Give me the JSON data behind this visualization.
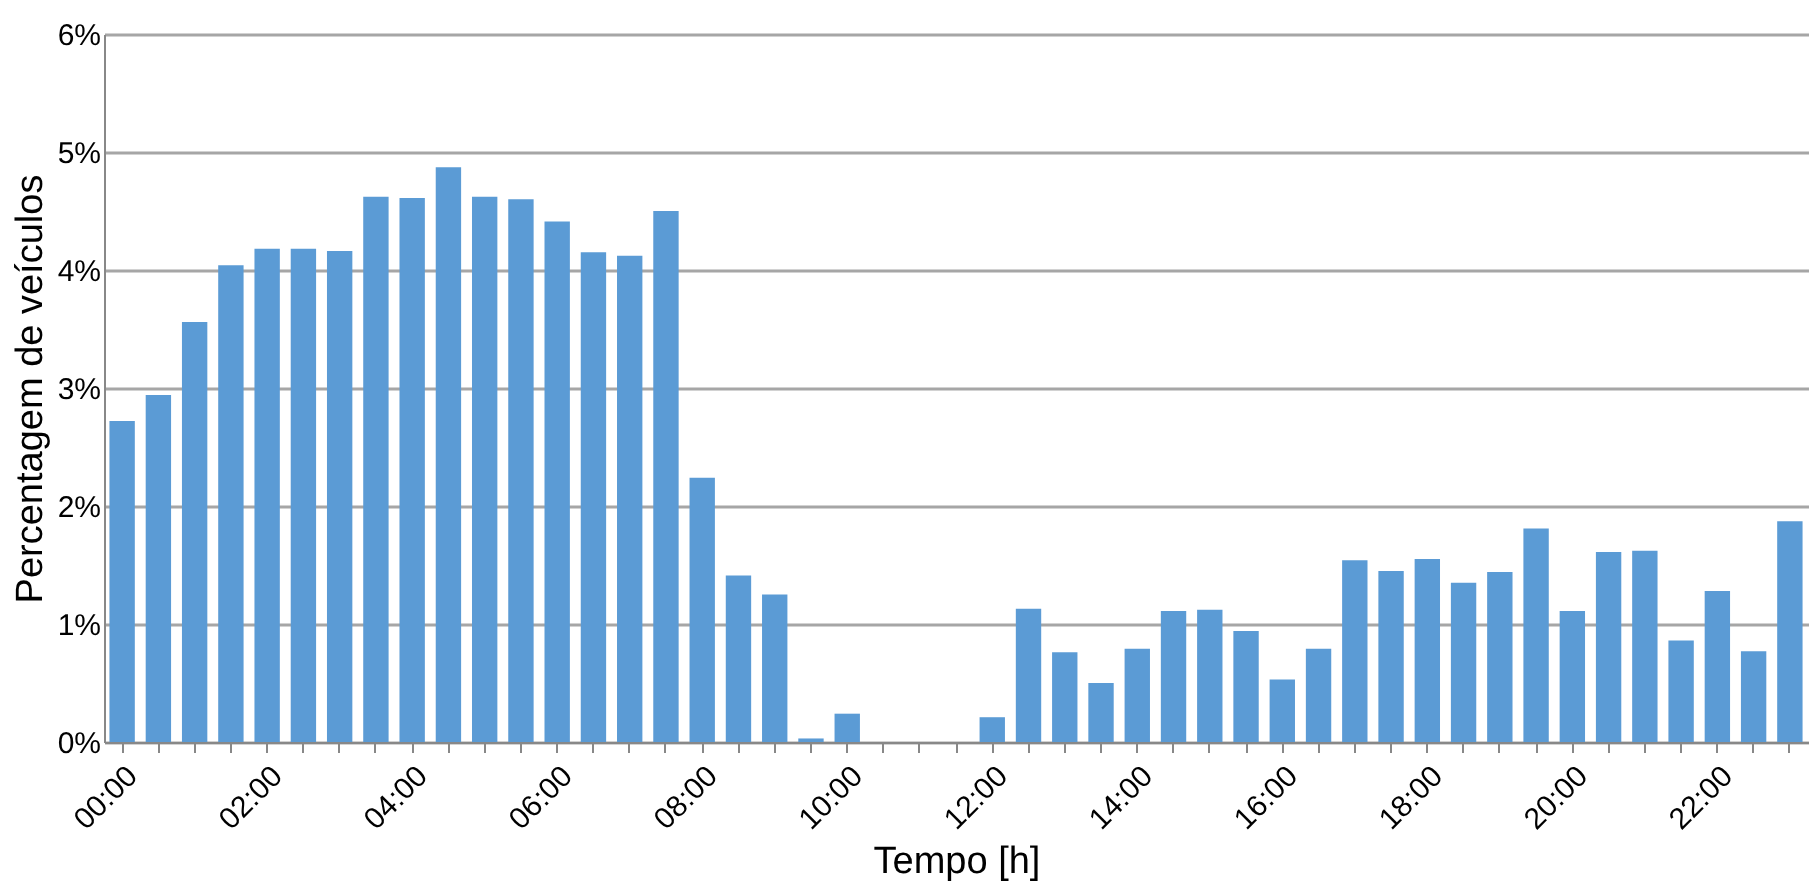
{
  "chart_data": {
    "type": "bar",
    "xlabel": "Tempo [h]",
    "ylabel": "Percentagem de veículos",
    "categories": [
      "00:00",
      null,
      null,
      null,
      "02:00",
      null,
      null,
      null,
      "04:00",
      null,
      null,
      null,
      "06:00",
      null,
      null,
      null,
      "08:00",
      null,
      null,
      null,
      "10:00",
      null,
      null,
      null,
      "12:00",
      null,
      null,
      null,
      "14:00",
      null,
      null,
      null,
      "16:00",
      null,
      null,
      null,
      "18:00",
      null,
      null,
      null,
      "20:00",
      null,
      null,
      null,
      "22:00",
      null,
      null
    ],
    "values": [
      2.72,
      2.94,
      3.56,
      4.04,
      4.18,
      4.18,
      4.16,
      4.62,
      4.61,
      4.87,
      4.62,
      4.6,
      4.41,
      4.15,
      4.12,
      4.5,
      2.24,
      1.41,
      1.25,
      0.03,
      0.24,
      0,
      0,
      0,
      0.21,
      1.13,
      0.76,
      0.5,
      0.79,
      1.11,
      1.12,
      0.94,
      0.53,
      0.79,
      1.54,
      1.45,
      1.55,
      1.35,
      1.44,
      1.81,
      1.11,
      1.61,
      1.62,
      0.86,
      1.28,
      0.77,
      1.87
    ],
    "color": "#5b9bd5",
    "ylim": [
      0,
      6
    ],
    "yticks": [
      {
        "value": 0,
        "label": "0%"
      },
      {
        "value": 1,
        "label": "1%"
      },
      {
        "value": 2,
        "label": "2%"
      },
      {
        "value": 3,
        "label": "3%"
      },
      {
        "value": 4,
        "label": "4%"
      },
      {
        "value": 5,
        "label": "5%"
      },
      {
        "value": 6,
        "label": "6%"
      }
    ],
    "grid": "y"
  }
}
